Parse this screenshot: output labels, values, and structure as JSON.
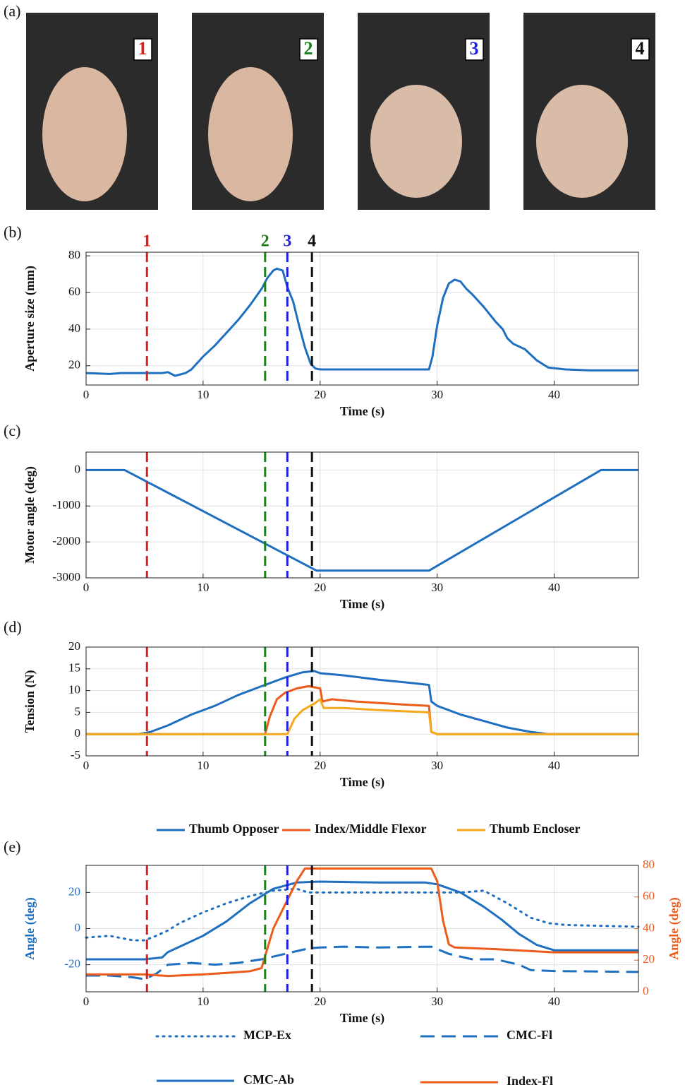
{
  "panel_labels": [
    "(a)",
    "(b)",
    "(c)",
    "(d)",
    "(e)"
  ],
  "photos": [
    {
      "label": "1",
      "color": "#e01b1b"
    },
    {
      "label": "2",
      "color": "#1a7f1a"
    },
    {
      "label": "3",
      "color": "#1e1ee0"
    },
    {
      "label": "4",
      "color": "#111111"
    }
  ],
  "chart_data": [
    {
      "type": "line",
      "xlabel": "Time (s)",
      "ylabel": "Aperture size (mm)",
      "grid": true,
      "xlim": [
        0,
        47.2
      ],
      "xticks": [
        0,
        10,
        20,
        30,
        40
      ],
      "ylim": [
        9.5,
        82
      ],
      "yticks": [
        20,
        40,
        60,
        80
      ],
      "markers": [
        {
          "x": 5.2,
          "label": "1",
          "color": "#e01b1b"
        },
        {
          "x": 15.3,
          "label": "2",
          "color": "#1a7f1a"
        },
        {
          "x": 17.2,
          "label": "3",
          "color": "#1e1ee0"
        },
        {
          "x": 19.3,
          "label": "4",
          "color": "#111111"
        }
      ],
      "series": [
        {
          "color": "#1f6fc0",
          "style": "solid",
          "x": [
            0,
            2,
            3,
            5,
            6.5,
            7,
            7.6,
            8.5,
            9,
            10,
            11,
            12,
            13,
            14,
            15,
            15.5,
            16,
            16.3,
            16.8,
            17.2,
            17.7,
            18.2,
            18.7,
            19.2,
            19.6,
            20,
            25,
            29.3,
            29.6,
            30,
            30.5,
            31,
            31.5,
            32,
            32.5,
            33,
            34,
            35,
            35.6,
            36,
            36.5,
            37.5,
            38.5,
            39.5,
            41,
            43,
            47.2
          ],
          "values": [
            16,
            15.5,
            16,
            16,
            16,
            16.5,
            14.5,
            16,
            18,
            25,
            31,
            38,
            45,
            53,
            62,
            68,
            72,
            73,
            72,
            63,
            55,
            42,
            30,
            21,
            18.5,
            18,
            18,
            18,
            25,
            42,
            57,
            65,
            67,
            66,
            62,
            59,
            52,
            44,
            40,
            35,
            32,
            29,
            23,
            19,
            18,
            17.5,
            17.5
          ]
        }
      ]
    },
    {
      "type": "line",
      "xlabel": "Time (s)",
      "ylabel": "Motor angle (deg)",
      "grid": true,
      "xlim": [
        0,
        47.2
      ],
      "xticks": [
        0,
        10,
        20,
        30,
        40
      ],
      "ylim": [
        -3000,
        500
      ],
      "yticks": [
        -3000,
        -2000,
        -1000,
        0
      ],
      "markers": [
        {
          "x": 5.2,
          "color": "#e01b1b"
        },
        {
          "x": 15.3,
          "color": "#1a7f1a"
        },
        {
          "x": 17.2,
          "color": "#1e1ee0"
        },
        {
          "x": 19.3,
          "color": "#111111"
        }
      ],
      "series": [
        {
          "color": "#1f6fc0",
          "style": "solid",
          "x": [
            0,
            3.3,
            19.7,
            29.3,
            44,
            47.2
          ],
          "values": [
            0,
            0,
            -2800,
            -2800,
            0,
            0
          ]
        }
      ]
    },
    {
      "type": "line",
      "xlabel": "Time (s)",
      "ylabel": "Tension (N)",
      "grid": true,
      "legend": "below",
      "xlim": [
        0,
        47.2
      ],
      "xticks": [
        0,
        10,
        20,
        30,
        40
      ],
      "ylim": [
        -5,
        20
      ],
      "yticks": [
        -5,
        0,
        5,
        10,
        15,
        20
      ],
      "markers": [
        {
          "x": 5.2,
          "color": "#e01b1b"
        },
        {
          "x": 15.3,
          "color": "#1a7f1a"
        },
        {
          "x": 17.2,
          "color": "#1e1ee0"
        },
        {
          "x": 19.3,
          "color": "#111111"
        }
      ],
      "series": [
        {
          "name": "Thumb Opposer",
          "color": "#1f6fc0",
          "style": "solid",
          "x": [
            0,
            4.5,
            5.5,
            7,
            9,
            11,
            13,
            15,
            17,
            18.5,
            19.5,
            20,
            22,
            25,
            28,
            29.3,
            29.5,
            30,
            32,
            34,
            36,
            38,
            39.5,
            47.2
          ],
          "values": [
            0,
            0,
            0.5,
            2,
            4.5,
            6.5,
            9,
            11,
            13,
            14.2,
            14.5,
            14,
            13.5,
            12.5,
            11.7,
            11.3,
            7.5,
            6.5,
            4.5,
            3,
            1.5,
            0.5,
            0,
            0
          ]
        },
        {
          "name": "Index/Middle Flexor",
          "color": "#ec5a1c",
          "style": "solid",
          "x": [
            0,
            15.3,
            15.7,
            16.3,
            17,
            18,
            19,
            20,
            20.2,
            21,
            23,
            27,
            29.3,
            29.5,
            30,
            47.2
          ],
          "values": [
            0,
            0,
            4,
            8,
            9.5,
            10.5,
            11,
            10.5,
            7.5,
            8,
            7.5,
            6.8,
            6.5,
            0.5,
            0,
            0
          ]
        },
        {
          "name": "Thumb Encloser",
          "color": "#f5a81c",
          "style": "solid",
          "x": [
            0,
            17.2,
            17.8,
            18.5,
            19.5,
            20,
            20.3,
            22,
            25,
            29.3,
            29.5,
            30,
            47.2
          ],
          "values": [
            0,
            0,
            3.5,
            5.5,
            7,
            8,
            6,
            6,
            5.5,
            5,
            0.5,
            0,
            0
          ]
        }
      ]
    },
    {
      "type": "line",
      "xlabel": "Time (s)",
      "ylabel": "Angle (deg)",
      "y2label": "Angle (deg)",
      "grid": true,
      "legend": "below",
      "xlim": [
        0,
        47.2
      ],
      "xticks": [
        0,
        10,
        20,
        30,
        40
      ],
      "ylim": [
        -35,
        35
      ],
      "yticks": [
        -20,
        0,
        20
      ],
      "y2lim": [
        0,
        80
      ],
      "y2ticks": [
        0,
        20,
        40,
        60,
        80
      ],
      "markers": [
        {
          "x": 5.2,
          "color": "#e01b1b"
        },
        {
          "x": 15.3,
          "color": "#1a7f1a"
        },
        {
          "x": 17.2,
          "color": "#1e1ee0"
        },
        {
          "x": 19.3,
          "color": "#111111"
        }
      ],
      "series": [
        {
          "name": "MCP-Ex",
          "color": "#1f6fc0",
          "style": "dotted",
          "x": [
            0,
            2,
            4,
            5,
            6,
            7,
            8,
            10,
            12,
            14,
            16,
            18,
            19,
            25,
            30,
            32,
            34,
            36,
            38,
            39.5,
            41,
            47.2
          ],
          "values": [
            -5,
            -4,
            -6.5,
            -6.5,
            -4,
            -1,
            3,
            9,
            14,
            18,
            21,
            22,
            20,
            20,
            20,
            20,
            21,
            14,
            6,
            3,
            2,
            1
          ]
        },
        {
          "name": "CMC-Fl",
          "color": "#1f6fc0",
          "style": "dashed",
          "x": [
            0,
            2,
            4,
            5,
            6,
            7,
            9,
            11,
            13,
            15,
            17,
            19,
            20,
            22,
            25,
            29.5,
            31,
            33,
            35,
            37,
            38,
            40,
            47.2
          ],
          "values": [
            -26,
            -26,
            -27,
            -28,
            -25,
            -20,
            -19,
            -20,
            -19,
            -17,
            -14,
            -11,
            -10.5,
            -10,
            -10.5,
            -10,
            -14,
            -17,
            -17,
            -20,
            -23,
            -23.5,
            -24
          ]
        },
        {
          "name": "CMC-Ab",
          "color": "#1f6fc0",
          "style": "solid",
          "x": [
            0,
            5,
            6.5,
            7,
            8,
            10,
            12,
            14,
            16,
            18,
            20,
            25,
            29,
            30,
            32,
            34,
            35.5,
            37,
            38.5,
            40,
            47.2
          ],
          "values": [
            -17,
            -17,
            -16,
            -13,
            -10,
            -4,
            4,
            14,
            22,
            25.5,
            26,
            25.5,
            25.5,
            24.5,
            20,
            12,
            5,
            -3,
            -9,
            -12,
            -12
          ]
        },
        {
          "name": "Index-Fl",
          "color": "#ec5a1c",
          "style": "solid",
          "axis": "y2",
          "x": [
            0,
            5,
            7,
            10,
            12,
            14,
            15,
            16,
            17,
            18,
            18.7,
            19.5,
            29.5,
            30,
            30.5,
            31,
            31.5,
            35,
            40,
            47.2
          ],
          "values": [
            11,
            11,
            10,
            11,
            12,
            13,
            15,
            40,
            55,
            70,
            78,
            78,
            78,
            70,
            45,
            30,
            28,
            27,
            25,
            25
          ]
        }
      ]
    }
  ]
}
